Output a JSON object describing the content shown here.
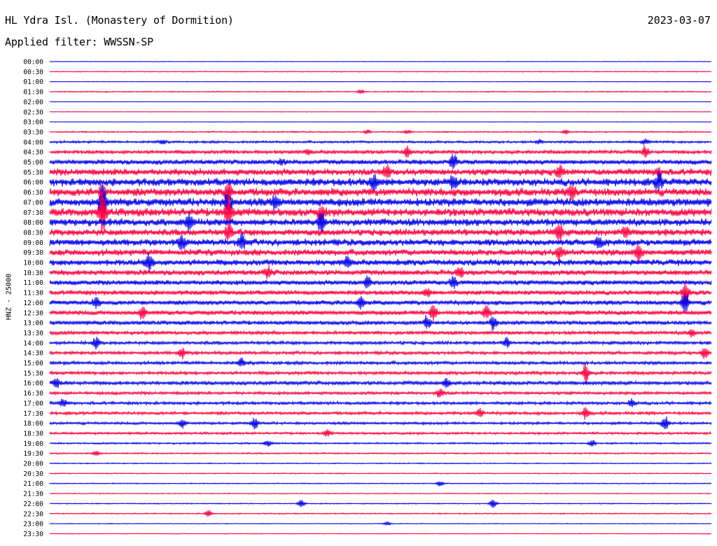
{
  "header": {
    "station": "HL Ydra Isl. (Monastery of Dormition)",
    "date": "2023-03-07",
    "filter": "Applied filter: WWSSN-SP",
    "channel_label": "HNZ - 25000"
  },
  "colors": {
    "even_trace": "#0000ee",
    "odd_trace": "#ff0040",
    "text": "#000000"
  },
  "chart_data": {
    "type": "line",
    "title": "HL Ydra Isl. (Monastery of Dormition)",
    "ylabel": "HNZ - 25000",
    "row_labels": [
      "00:00",
      "00:30",
      "01:00",
      "01:30",
      "02:00",
      "02:30",
      "03:00",
      "03:30",
      "04:00",
      "04:30",
      "05:00",
      "05:30",
      "06:00",
      "06:30",
      "07:00",
      "07:30",
      "08:00",
      "08:30",
      "09:00",
      "09:30",
      "10:00",
      "10:30",
      "11:00",
      "11:30",
      "12:00",
      "12:30",
      "13:00",
      "13:30",
      "14:00",
      "14:30",
      "15:00",
      "15:30",
      "16:00",
      "16:30",
      "17:00",
      "17:30",
      "18:00",
      "18:30",
      "19:00",
      "19:30",
      "20:00",
      "20:30",
      "21:00",
      "21:30",
      "22:00",
      "22:30",
      "23:00",
      "23:30"
    ],
    "noise_level": [
      0.4,
      0.6,
      0.4,
      0.7,
      0.3,
      0.4,
      0.3,
      0.9,
      1.6,
      2.4,
      3.4,
      4.6,
      5.2,
      5.4,
      5.6,
      5.4,
      5.0,
      4.6,
      4.6,
      4.4,
      4.2,
      3.8,
      3.4,
      3.2,
      3.2,
      3.2,
      2.8,
      2.4,
      2.2,
      2.2,
      2.2,
      2.2,
      2.6,
      2.0,
      2.0,
      2.0,
      1.8,
      1.6,
      1.2,
      1.0,
      0.7,
      0.7,
      0.7,
      0.6,
      0.7,
      0.8,
      0.5,
      0.5
    ],
    "events": [
      {
        "row": 3,
        "x": 0.47,
        "amp": 4
      },
      {
        "row": 7,
        "x": 0.48,
        "amp": 3
      },
      {
        "row": 7,
        "x": 0.54,
        "amp": 3
      },
      {
        "row": 7,
        "x": 0.78,
        "amp": 3
      },
      {
        "row": 8,
        "x": 0.17,
        "amp": 3
      },
      {
        "row": 8,
        "x": 0.74,
        "amp": 3
      },
      {
        "row": 8,
        "x": 0.9,
        "amp": 4
      },
      {
        "row": 9,
        "x": 0.39,
        "amp": 4
      },
      {
        "row": 9,
        "x": 0.54,
        "amp": 7
      },
      {
        "row": 9,
        "x": 0.9,
        "amp": 8
      },
      {
        "row": 10,
        "x": 0.35,
        "amp": 4
      },
      {
        "row": 10,
        "x": 0.61,
        "amp": 12
      },
      {
        "row": 11,
        "x": 0.51,
        "amp": 10
      },
      {
        "row": 11,
        "x": 0.77,
        "amp": 8
      },
      {
        "row": 11,
        "x": 0.92,
        "amp": 6
      },
      {
        "row": 12,
        "x": 0.49,
        "amp": 12
      },
      {
        "row": 12,
        "x": 0.61,
        "amp": 10
      },
      {
        "row": 12,
        "x": 0.92,
        "amp": 12
      },
      {
        "row": 13,
        "x": 0.08,
        "amp": 14
      },
      {
        "row": 13,
        "x": 0.27,
        "amp": 14
      },
      {
        "row": 13,
        "x": 0.79,
        "amp": 10
      },
      {
        "row": 14,
        "x": 0.08,
        "amp": 26
      },
      {
        "row": 14,
        "x": 0.27,
        "amp": 18
      },
      {
        "row": 14,
        "x": 0.34,
        "amp": 8
      },
      {
        "row": 15,
        "x": 0.08,
        "amp": 32
      },
      {
        "row": 15,
        "x": 0.27,
        "amp": 26
      },
      {
        "row": 15,
        "x": 0.41,
        "amp": 8
      },
      {
        "row": 16,
        "x": 0.21,
        "amp": 12
      },
      {
        "row": 16,
        "x": 0.41,
        "amp": 14
      },
      {
        "row": 17,
        "x": 0.27,
        "amp": 10
      },
      {
        "row": 17,
        "x": 0.77,
        "amp": 14
      },
      {
        "row": 17,
        "x": 0.87,
        "amp": 8
      },
      {
        "row": 18,
        "x": 0.2,
        "amp": 10
      },
      {
        "row": 18,
        "x": 0.29,
        "amp": 12
      },
      {
        "row": 18,
        "x": 0.83,
        "amp": 9
      },
      {
        "row": 19,
        "x": 0.77,
        "amp": 10
      },
      {
        "row": 19,
        "x": 0.89,
        "amp": 12
      },
      {
        "row": 20,
        "x": 0.15,
        "amp": 12
      },
      {
        "row": 20,
        "x": 0.45,
        "amp": 8
      },
      {
        "row": 21,
        "x": 0.33,
        "amp": 8
      },
      {
        "row": 21,
        "x": 0.62,
        "amp": 6
      },
      {
        "row": 22,
        "x": 0.48,
        "amp": 8
      },
      {
        "row": 22,
        "x": 0.61,
        "amp": 8
      },
      {
        "row": 23,
        "x": 0.57,
        "amp": 6
      },
      {
        "row": 23,
        "x": 0.96,
        "amp": 14
      },
      {
        "row": 24,
        "x": 0.07,
        "amp": 8
      },
      {
        "row": 24,
        "x": 0.47,
        "amp": 8
      },
      {
        "row": 24,
        "x": 0.96,
        "amp": 16
      },
      {
        "row": 25,
        "x": 0.14,
        "amp": 8
      },
      {
        "row": 25,
        "x": 0.58,
        "amp": 12
      },
      {
        "row": 25,
        "x": 0.66,
        "amp": 10
      },
      {
        "row": 26,
        "x": 0.57,
        "amp": 10
      },
      {
        "row": 26,
        "x": 0.67,
        "amp": 9
      },
      {
        "row": 27,
        "x": 0.97,
        "amp": 6
      },
      {
        "row": 28,
        "x": 0.07,
        "amp": 8
      },
      {
        "row": 28,
        "x": 0.69,
        "amp": 7
      },
      {
        "row": 29,
        "x": 0.2,
        "amp": 8
      },
      {
        "row": 29,
        "x": 0.99,
        "amp": 10
      },
      {
        "row": 30,
        "x": 0.29,
        "amp": 6
      },
      {
        "row": 31,
        "x": 0.81,
        "amp": 14
      },
      {
        "row": 32,
        "x": 0.01,
        "amp": 6
      },
      {
        "row": 32,
        "x": 0.6,
        "amp": 6
      },
      {
        "row": 33,
        "x": 0.59,
        "amp": 7
      },
      {
        "row": 34,
        "x": 0.02,
        "amp": 6
      },
      {
        "row": 34,
        "x": 0.88,
        "amp": 6
      },
      {
        "row": 35,
        "x": 0.65,
        "amp": 8
      },
      {
        "row": 35,
        "x": 0.81,
        "amp": 8
      },
      {
        "row": 36,
        "x": 0.2,
        "amp": 6
      },
      {
        "row": 36,
        "x": 0.31,
        "amp": 8
      },
      {
        "row": 36,
        "x": 0.93,
        "amp": 10
      },
      {
        "row": 37,
        "x": 0.42,
        "amp": 5
      },
      {
        "row": 38,
        "x": 0.33,
        "amp": 5
      },
      {
        "row": 38,
        "x": 0.82,
        "amp": 5
      },
      {
        "row": 39,
        "x": 0.07,
        "amp": 4
      },
      {
        "row": 42,
        "x": 0.59,
        "amp": 4
      },
      {
        "row": 44,
        "x": 0.38,
        "amp": 5
      },
      {
        "row": 44,
        "x": 0.67,
        "amp": 6
      },
      {
        "row": 45,
        "x": 0.24,
        "amp": 5
      },
      {
        "row": 46,
        "x": 0.51,
        "amp": 3
      }
    ]
  }
}
